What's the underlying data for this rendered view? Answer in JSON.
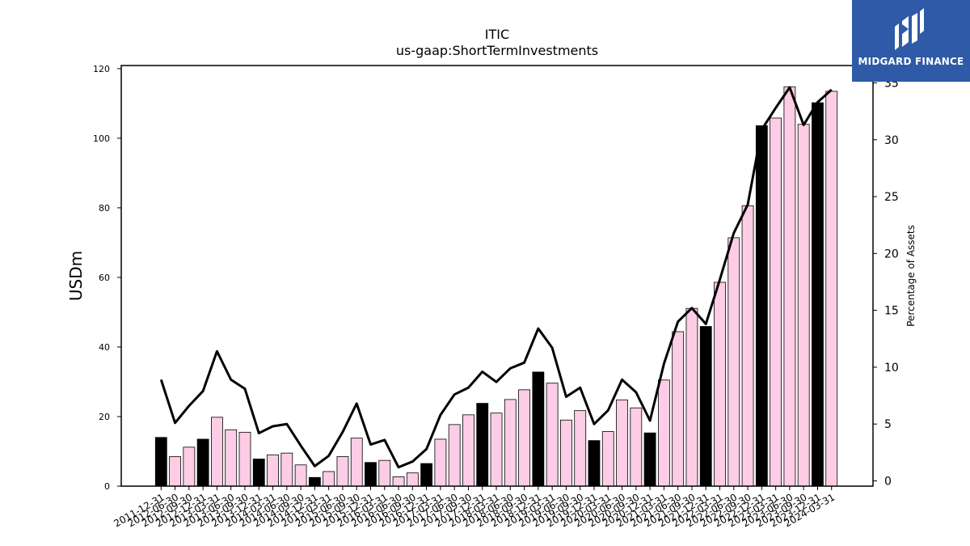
{
  "chart_data": {
    "type": "bar",
    "title": "ITIC",
    "subtitle": "us-gaap:ShortTermInvestments",
    "ylabel": "USDm",
    "y2label": "Percentage of Assets",
    "ylim": [
      0,
      120
    ],
    "y2lim": [
      0,
      35
    ],
    "yticks": [
      0,
      20,
      40,
      60,
      80,
      100,
      120
    ],
    "y2ticks": [
      0,
      5,
      10,
      15,
      20,
      25,
      30,
      35
    ],
    "grid": false,
    "colors": {
      "annual": "#000000",
      "quarter": "#fccde5",
      "edge": "#000000",
      "line": "#000000"
    },
    "categories": [
      "2011-12-31",
      "2012-06-30",
      "2012-09-30",
      "2012-12-31",
      "2013-03-31",
      "2013-06-30",
      "2013-09-30",
      "2013-12-31",
      "2014-03-31",
      "2014-06-30",
      "2014-09-30",
      "2014-12-31",
      "2015-03-31",
      "2015-06-30",
      "2015-09-30",
      "2015-12-31",
      "2016-03-31",
      "2016-06-30",
      "2016-09-30",
      "2016-12-31",
      "2017-03-31",
      "2017-06-30",
      "2017-09-30",
      "2017-12-31",
      "2018-03-31",
      "2018-06-30",
      "2018-09-30",
      "2018-12-31",
      "2019-03-31",
      "2019-06-30",
      "2019-09-30",
      "2019-12-31",
      "2020-03-31",
      "2020-06-30",
      "2020-09-30",
      "2020-12-31",
      "2021-03-31",
      "2021-06-30",
      "2021-09-30",
      "2021-12-31",
      "2022-03-31",
      "2022-06-30",
      "2022-09-30",
      "2022-12-31",
      "2023-03-31",
      "2023-06-30",
      "2023-09-30",
      "2023-12-31",
      "2024-03-31"
    ],
    "annual": [
      true,
      false,
      false,
      true,
      false,
      false,
      false,
      true,
      false,
      false,
      false,
      true,
      false,
      false,
      false,
      true,
      false,
      false,
      false,
      true,
      false,
      false,
      false,
      true,
      false,
      false,
      false,
      true,
      false,
      false,
      false,
      true,
      false,
      false,
      false,
      true,
      false,
      false,
      false,
      true,
      false,
      false,
      false,
      true,
      false,
      false,
      false,
      true,
      false
    ],
    "series": [
      {
        "name": "USDm",
        "type": "bar",
        "values": [
          14.0,
          8.5,
          11.2,
          13.5,
          19.8,
          16.2,
          15.5,
          7.8,
          9.0,
          9.5,
          6.1,
          2.5,
          4.2,
          8.5,
          13.8,
          6.8,
          7.4,
          2.7,
          3.8,
          6.5,
          13.5,
          17.7,
          20.5,
          23.8,
          21.0,
          24.9,
          27.7,
          32.8,
          29.6,
          19.0,
          21.7,
          13.1,
          15.7,
          24.8,
          22.5,
          15.3,
          30.5,
          44.4,
          51.1,
          45.9,
          58.6,
          71.4,
          80.6,
          103.6,
          105.8,
          114.8,
          104.0,
          110.2,
          113.5
        ]
      },
      {
        "name": "Percentage of Assets",
        "type": "line",
        "values": [
          8.9,
          5.1,
          6.6,
          7.9,
          11.4,
          8.9,
          8.1,
          4.2,
          4.8,
          5.0,
          3.1,
          1.3,
          2.2,
          4.3,
          6.8,
          3.2,
          3.6,
          1.2,
          1.7,
          2.8,
          5.8,
          7.6,
          8.2,
          9.6,
          8.7,
          9.9,
          10.4,
          13.4,
          11.7,
          7.4,
          8.2,
          5.0,
          6.2,
          8.9,
          7.8,
          5.3,
          10.3,
          14.0,
          15.2,
          13.8,
          17.7,
          21.8,
          24.3,
          30.9,
          32.8,
          34.6,
          31.3,
          33.3,
          34.4
        ]
      }
    ]
  },
  "logo": {
    "text": "MIDGARD FINANCE",
    "color": "#2e5aa7"
  }
}
